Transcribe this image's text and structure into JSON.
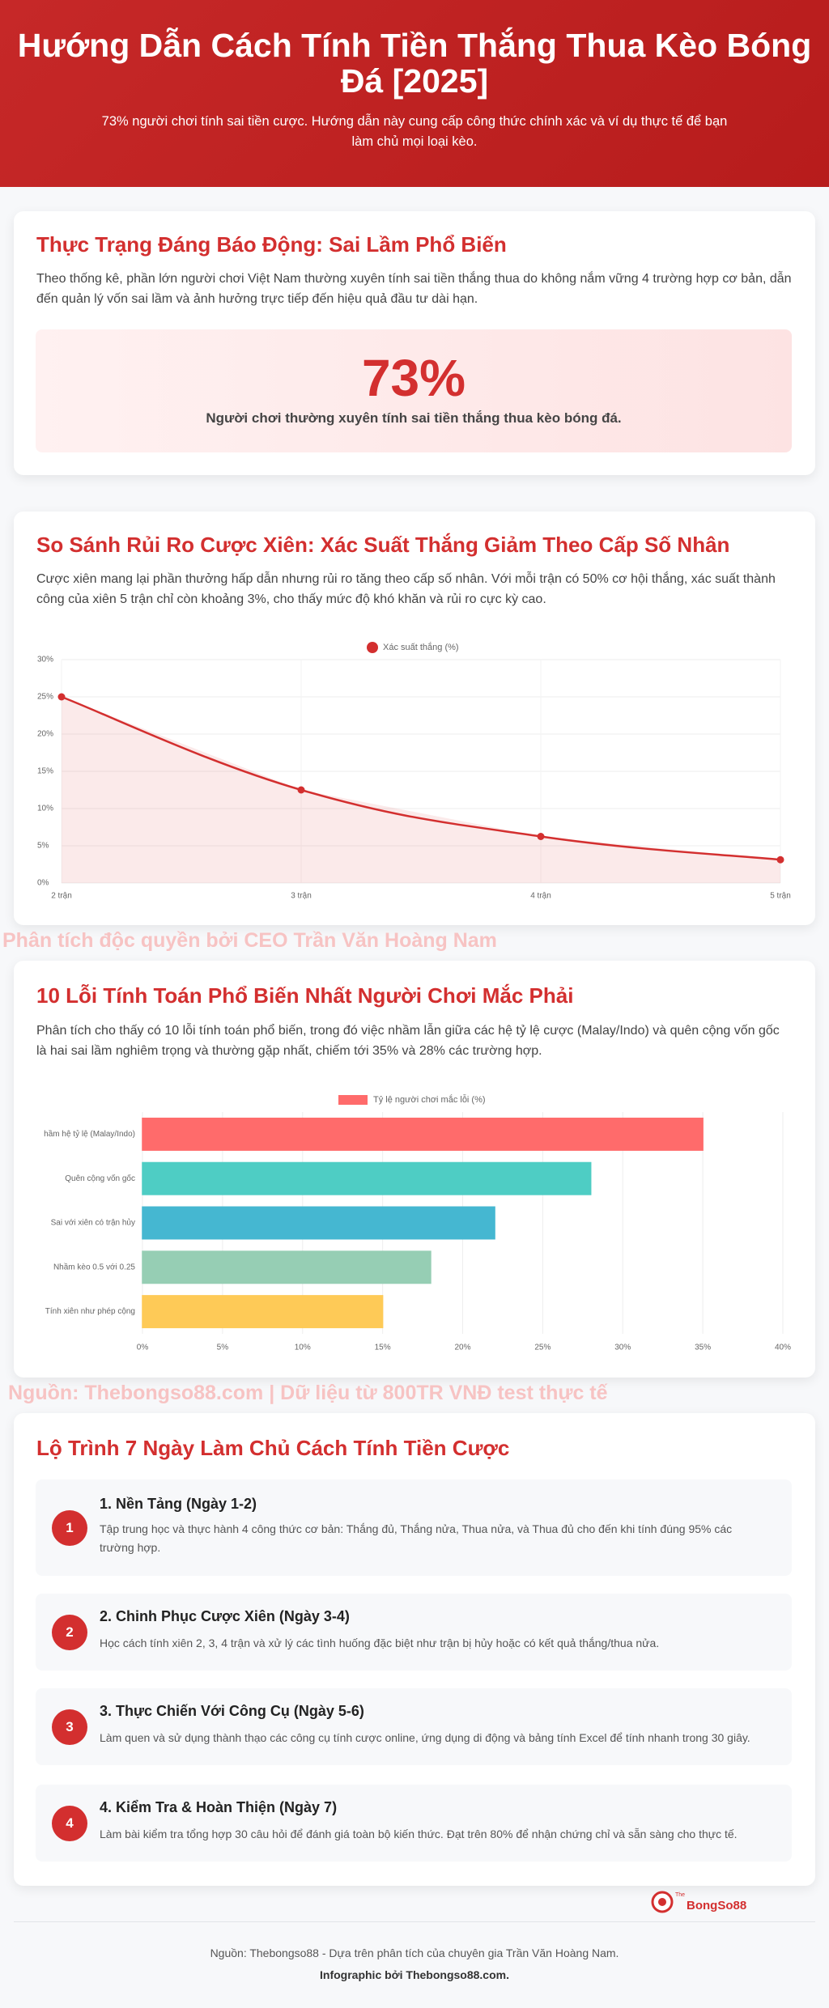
{
  "header": {
    "title": "Hướng Dẫn Cách Tính Tiền Thắng Thua Kèo Bóng Đá [2025]",
    "subtitle": "73% người chơi tính sai tiền cược. Hướng dẫn này cung cấp công thức chính xác và ví dụ thực tế để bạn làm chủ mọi loại kèo."
  },
  "section_1": {
    "heading": "Thực Trạng Đáng Báo Động: Sai Lầm Phổ Biến",
    "text": "Theo thống kê, phần lớn người chơi Việt Nam thường xuyên tính sai tiền thắng thua do không nắm vững 4 trường hợp cơ bản, dẫn đến quản lý vốn sai lầm và ảnh hưởng trực tiếp đến hiệu quả đầu tư dài hạn.",
    "stat": "73%",
    "stat_caption": "Người chơi thường xuyên tính sai tiền thắng thua kèo bóng đá."
  },
  "section_2": {
    "heading": "So Sánh Rủi Ro Cược Xiên: Xác Suất Thắng Giảm Theo Cấp Số Nhân",
    "text": "Cược xiên mang lại phần thưởng hấp dẫn nhưng rủi ro tăng theo cấp số nhân. Với mỗi trận có 50% cơ hội thắng, xác suất thành công của xiên 5 trận chỉ còn khoảng 3%, cho thấy mức độ khó khăn và rủi ro cực kỳ cao."
  },
  "watermark_1": "Phân tích độc quyền bởi CEO Trần Văn Hoàng Nam",
  "section_3": {
    "heading": "10 Lỗi Tính Toán Phổ Biến Nhất Người Chơi Mắc Phải",
    "text": "Phân tích cho thấy có 10 lỗi tính toán phổ biến, trong đó việc nhầm lẫn giữa các hệ tỷ lệ cược (Malay/Indo) và quên cộng vốn gốc là hai sai lầm nghiêm trọng và thường gặp nhất, chiếm tới 35% và 28% các trường hợp."
  },
  "watermark_2": "Nguồn: Thebongso88.com | Dữ liệu từ 800TR VNĐ test thực tế",
  "section_4": {
    "heading": "Lộ Trình 7 Ngày Làm Chủ Cách Tính Tiền Cược",
    "steps": [
      {
        "number": "1",
        "title": "1. Nền Tảng (Ngày 1-2)",
        "text": "Tập trung học và thực hành 4 công thức cơ bản: Thắng đủ, Thắng nửa, Thua nửa, và Thua đủ cho đến khi tính đúng 95% các trường hợp."
      },
      {
        "number": "2",
        "title": "2. Chinh Phục Cược Xiên (Ngày 3-4)",
        "text": "Học cách tính xiên 2, 3, 4 trận và xử lý các tình huống đặc biệt như trận bị hủy hoặc có kết quả thắng/thua nửa."
      },
      {
        "number": "3",
        "title": "3. Thực Chiến Với Công Cụ (Ngày 5-6)",
        "text": "Làm quen và sử dụng thành thạo các công cụ tính cược online, ứng dụng di động và bảng tính Excel để tính nhanh trong 30 giây."
      },
      {
        "number": "4",
        "title": "4. Kiểm Tra & Hoàn Thiện (Ngày 7)",
        "text": "Làm bài kiểm tra tổng hợp 30 câu hỏi để đánh giá toàn bộ kiến thức. Đạt trên 80% để nhận chứng chỉ và sẵn sàng cho thực tế."
      }
    ]
  },
  "logo": {
    "prefix": "The",
    "name": "BongSo88"
  },
  "footer": {
    "source": "Nguồn: Thebongso88 - Dựa trên phân tích của chuyên gia Trần Văn Hoàng Nam.",
    "credit": "Infographic bởi Thebongso88.com."
  },
  "chart_data": [
    {
      "type": "line",
      "legend": "top",
      "categories": [
        "2 trận",
        "3 trận",
        "4 trận",
        "5 trận"
      ],
      "series": [
        {
          "name": "Xác suất thắng (%)",
          "color": "#d32f2f",
          "values": [
            25,
            12.5,
            6.25,
            3.125
          ]
        }
      ],
      "ylim": [
        0,
        30
      ],
      "yticks": [
        {
          "value": 0,
          "label": "0%"
        },
        {
          "value": 5,
          "label": "5%"
        },
        {
          "value": 10,
          "label": "10%"
        },
        {
          "value": 15,
          "label": "15%"
        },
        {
          "value": 20,
          "label": "20%"
        },
        {
          "value": 25,
          "label": "25%"
        },
        {
          "value": 30,
          "label": "30%"
        }
      ],
      "grid": true
    },
    {
      "type": "bar",
      "orientation": "horizontal",
      "legend": "top",
      "categories": [
        "hầm hệ tỷ lệ (Malay/Indo)",
        "Quên cộng vốn gốc",
        "Sai với xiên có trận hủy",
        "Nhầm kèo 0.5 với 0.25",
        "Tính xiên như phép cộng"
      ],
      "series": [
        {
          "name": "Tỷ lệ người chơi mắc lỗi (%)",
          "color": "#ff6b6b",
          "values": [
            35,
            28,
            22,
            18,
            15
          ],
          "colors": [
            "#ff6b6b",
            "#4ecdc4",
            "#45b7d1",
            "#96ceb4",
            "#feca57"
          ]
        }
      ],
      "xlim": [
        0,
        40
      ],
      "xticks": [
        {
          "value": 0,
          "label": "0%"
        },
        {
          "value": 5,
          "label": "5%"
        },
        {
          "value": 10,
          "label": "10%"
        },
        {
          "value": 15,
          "label": "15%"
        },
        {
          "value": 20,
          "label": "20%"
        },
        {
          "value": 25,
          "label": "25%"
        },
        {
          "value": 30,
          "label": "30%"
        },
        {
          "value": 35,
          "label": "35%"
        },
        {
          "value": 40,
          "label": "40%"
        }
      ],
      "grid": true
    }
  ]
}
